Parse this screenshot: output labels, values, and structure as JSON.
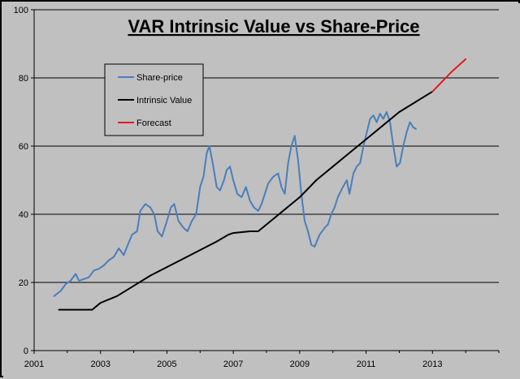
{
  "chart_data": {
    "type": "line",
    "title": "VAR Intrinsic Value vs Share-Price",
    "xlabel": "",
    "ylabel": "",
    "xlim": [
      2001,
      2015
    ],
    "ylim": [
      0,
      100
    ],
    "x_ticks": [
      2001,
      2003,
      2005,
      2007,
      2009,
      2011,
      2013
    ],
    "y_ticks": [
      0,
      20,
      40,
      60,
      80,
      100
    ],
    "grid": "horizontal",
    "legend_position": "upper-left",
    "colors": {
      "Share-price": "#4a7ebb",
      "Intrinsic Value": "#000000",
      "Forecast": "#e31a1c",
      "plot_bg": "#c0c0c0",
      "grid": "#000000"
    },
    "series": [
      {
        "name": "Share-price",
        "points": [
          [
            2001.6,
            16
          ],
          [
            2001.8,
            17.5
          ],
          [
            2001.95,
            19.5
          ],
          [
            2002.1,
            20.5
          ],
          [
            2002.25,
            22.5
          ],
          [
            2002.35,
            20.5
          ],
          [
            2002.5,
            21
          ],
          [
            2002.65,
            21.5
          ],
          [
            2002.8,
            23.5
          ],
          [
            2002.95,
            24
          ],
          [
            2003.1,
            25
          ],
          [
            2003.25,
            26.5
          ],
          [
            2003.4,
            27.5
          ],
          [
            2003.55,
            30
          ],
          [
            2003.7,
            28
          ],
          [
            2003.8,
            30.5
          ],
          [
            2003.95,
            34
          ],
          [
            2004.1,
            35
          ],
          [
            2004.2,
            41
          ],
          [
            2004.35,
            43
          ],
          [
            2004.5,
            42
          ],
          [
            2004.62,
            40
          ],
          [
            2004.72,
            35
          ],
          [
            2004.85,
            33.5
          ],
          [
            2005.0,
            38
          ],
          [
            2005.12,
            42
          ],
          [
            2005.22,
            43
          ],
          [
            2005.35,
            38
          ],
          [
            2005.5,
            36
          ],
          [
            2005.62,
            35
          ],
          [
            2005.75,
            38
          ],
          [
            2005.88,
            40
          ],
          [
            2006.0,
            48
          ],
          [
            2006.1,
            51
          ],
          [
            2006.2,
            58
          ],
          [
            2006.28,
            60
          ],
          [
            2006.38,
            55
          ],
          [
            2006.5,
            48
          ],
          [
            2006.6,
            47
          ],
          [
            2006.72,
            50
          ],
          [
            2006.8,
            53
          ],
          [
            2006.9,
            54
          ],
          [
            2007.0,
            50
          ],
          [
            2007.12,
            46
          ],
          [
            2007.25,
            45
          ],
          [
            2007.38,
            48
          ],
          [
            2007.5,
            44
          ],
          [
            2007.62,
            42
          ],
          [
            2007.75,
            41
          ],
          [
            2007.85,
            43
          ],
          [
            2007.95,
            46
          ],
          [
            2008.05,
            49
          ],
          [
            2008.2,
            51
          ],
          [
            2008.35,
            52
          ],
          [
            2008.45,
            48
          ],
          [
            2008.55,
            46
          ],
          [
            2008.65,
            55
          ],
          [
            2008.75,
            60
          ],
          [
            2008.85,
            63
          ],
          [
            2008.95,
            56
          ],
          [
            2009.05,
            46
          ],
          [
            2009.15,
            38
          ],
          [
            2009.25,
            35
          ],
          [
            2009.35,
            31
          ],
          [
            2009.45,
            30.5
          ],
          [
            2009.6,
            34
          ],
          [
            2009.75,
            36
          ],
          [
            2009.85,
            37
          ],
          [
            2009.95,
            40
          ],
          [
            2010.05,
            42
          ],
          [
            2010.15,
            45
          ],
          [
            2010.3,
            48
          ],
          [
            2010.42,
            50
          ],
          [
            2010.5,
            46
          ],
          [
            2010.62,
            52
          ],
          [
            2010.72,
            54
          ],
          [
            2010.82,
            55
          ],
          [
            2010.92,
            60
          ],
          [
            2011.02,
            64
          ],
          [
            2011.12,
            68
          ],
          [
            2011.22,
            69
          ],
          [
            2011.32,
            67
          ],
          [
            2011.42,
            69.5
          ],
          [
            2011.52,
            68
          ],
          [
            2011.62,
            70
          ],
          [
            2011.72,
            67
          ],
          [
            2011.82,
            60
          ],
          [
            2011.92,
            54
          ],
          [
            2012.02,
            55
          ],
          [
            2012.12,
            60
          ],
          [
            2012.22,
            64
          ],
          [
            2012.32,
            67
          ],
          [
            2012.42,
            65.5
          ],
          [
            2012.5,
            65
          ]
        ]
      },
      {
        "name": "Intrinsic Value",
        "points": [
          [
            2001.75,
            12
          ],
          [
            2002.75,
            12
          ],
          [
            2003.0,
            14
          ],
          [
            2003.5,
            16
          ],
          [
            2004.0,
            19
          ],
          [
            2004.5,
            22
          ],
          [
            2005.0,
            24.5
          ],
          [
            2005.5,
            27
          ],
          [
            2006.0,
            29.5
          ],
          [
            2006.5,
            32
          ],
          [
            2006.85,
            34
          ],
          [
            2007.0,
            34.5
          ],
          [
            2007.5,
            35
          ],
          [
            2007.75,
            35
          ],
          [
            2008.0,
            37
          ],
          [
            2008.5,
            41
          ],
          [
            2009.0,
            45
          ],
          [
            2009.5,
            50
          ],
          [
            2010.0,
            54
          ],
          [
            2010.5,
            58
          ],
          [
            2011.0,
            62
          ],
          [
            2011.5,
            66
          ],
          [
            2012.0,
            70
          ],
          [
            2012.5,
            73
          ],
          [
            2013.0,
            76
          ]
        ]
      },
      {
        "name": "Forecast",
        "points": [
          [
            2013.0,
            76
          ],
          [
            2013.3,
            79
          ],
          [
            2013.6,
            82
          ],
          [
            2014.0,
            85.5
          ]
        ]
      }
    ]
  }
}
